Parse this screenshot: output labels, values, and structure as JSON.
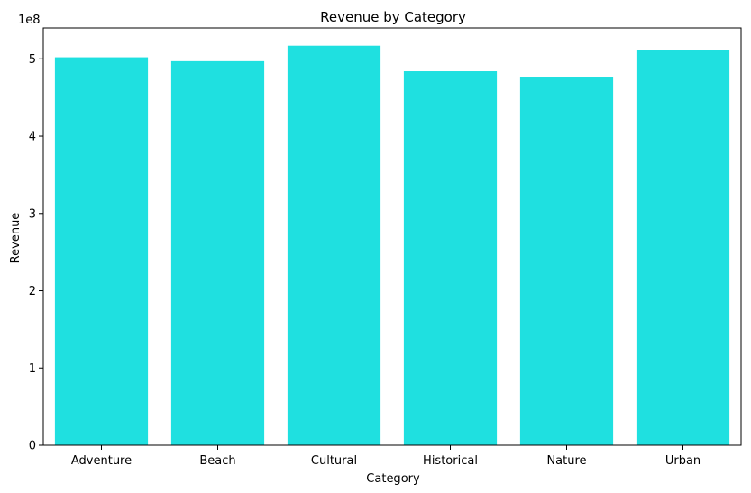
{
  "chart_data": {
    "type": "bar",
    "title": "Revenue by Category",
    "xlabel": "Category",
    "ylabel": "Revenue",
    "y_offset_label": "1e8",
    "categories": [
      "Adventure",
      "Beach",
      "Cultural",
      "Historical",
      "Nature",
      "Urban"
    ],
    "values": [
      502000000,
      497000000,
      517000000,
      484000000,
      477000000,
      511000000
    ],
    "ylim": [
      0,
      540000000
    ],
    "y_ticks": [
      0,
      100000000,
      200000000,
      300000000,
      400000000,
      500000000
    ],
    "y_tick_labels": [
      "0",
      "1",
      "2",
      "3",
      "4",
      "5"
    ],
    "bar_color": "#1fe0e0",
    "grid": false,
    "legend": "none"
  }
}
